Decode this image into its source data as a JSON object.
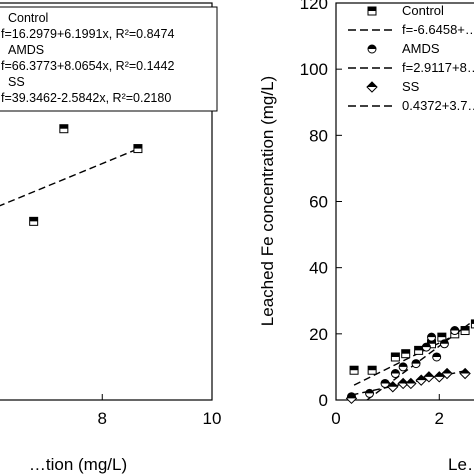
{
  "chart_data": [
    {
      "type": "scatter",
      "panel": "left",
      "xlabel": "…tion (mg/L)",
      "ylabel": "",
      "xlim": [
        6.1,
        10
      ],
      "ylim": [
        0,
        120
      ],
      "xticks": [
        8,
        10
      ],
      "yticks": [],
      "legend": {
        "position": "top",
        "entries": [
          {
            "label": "Control",
            "marker": "square-half"
          },
          {
            "label": "f=16.2979+6.1991x, R²=0.8474",
            "marker": "dash"
          },
          {
            "label": "AMDS",
            "marker": "circle-half"
          },
          {
            "label": "f=66.3773+8.0654x, R²=0.1442",
            "marker": "dash"
          },
          {
            "label": "SS",
            "marker": "diamond-half"
          },
          {
            "label": "f=39.3462-2.5842x, R²=0.2180",
            "marker": "dash"
          }
        ]
      },
      "series": [
        {
          "name": "Control",
          "marker": "square-half",
          "x": [
            6.75,
            7.3,
            8.65
          ],
          "y": [
            54,
            82,
            76
          ]
        }
      ],
      "fits": [
        {
          "x": [
            6.1,
            8.65
          ],
          "y": [
            58.5,
            75.9
          ]
        }
      ]
    },
    {
      "type": "scatter",
      "panel": "right",
      "xlabel": "Le…",
      "ylabel": "Leached Fe concentration (mg/L)",
      "xlim": [
        0,
        2.75
      ],
      "ylim": [
        0,
        120
      ],
      "xticks": [
        0,
        2
      ],
      "yticks": [
        0,
        20,
        40,
        60,
        80,
        100,
        120
      ],
      "legend": {
        "position": "top-right",
        "entries": [
          {
            "label": "Control",
            "marker": "square-half"
          },
          {
            "label": "f=-6.6458+…",
            "marker": "dash"
          },
          {
            "label": "AMDS",
            "marker": "circle-half"
          },
          {
            "label": "f=2.9117+8…",
            "marker": "dash"
          },
          {
            "label": "SS",
            "marker": "diamond-half"
          },
          {
            "label": "0.4372+3.7…",
            "marker": "dash"
          }
        ]
      },
      "series": [
        {
          "name": "Control",
          "marker": "square-half",
          "x": [
            0.35,
            0.7,
            1.15,
            1.35,
            1.6,
            1.85,
            2.05,
            2.3,
            2.5,
            2.7
          ],
          "y": [
            9,
            9,
            13,
            14,
            15,
            17,
            19,
            20,
            21,
            23
          ]
        },
        {
          "name": "AMDS",
          "marker": "circle-half",
          "x": [
            0.3,
            0.65,
            0.95,
            1.15,
            1.3,
            1.55,
            1.75,
            1.85,
            1.95,
            2.1,
            2.3
          ],
          "y": [
            1,
            2,
            5,
            8,
            10,
            11,
            16,
            19,
            13,
            17,
            21
          ]
        },
        {
          "name": "SS",
          "marker": "diamond-half",
          "x": [
            0.3,
            1.1,
            1.3,
            1.45,
            1.65,
            1.8,
            2.0,
            2.15,
            2.5
          ],
          "y": [
            0.5,
            4,
            5,
            5,
            6,
            7,
            7,
            8,
            8
          ]
        }
      ],
      "fits": [
        {
          "x": [
            0.35,
            2.75
          ],
          "y": [
            4.5,
            23
          ]
        },
        {
          "x": [
            0.6,
            2.75
          ],
          "y": [
            0,
            25
          ]
        },
        {
          "x": [
            0.3,
            2.55
          ],
          "y": [
            1.5,
            9
          ]
        }
      ]
    }
  ]
}
